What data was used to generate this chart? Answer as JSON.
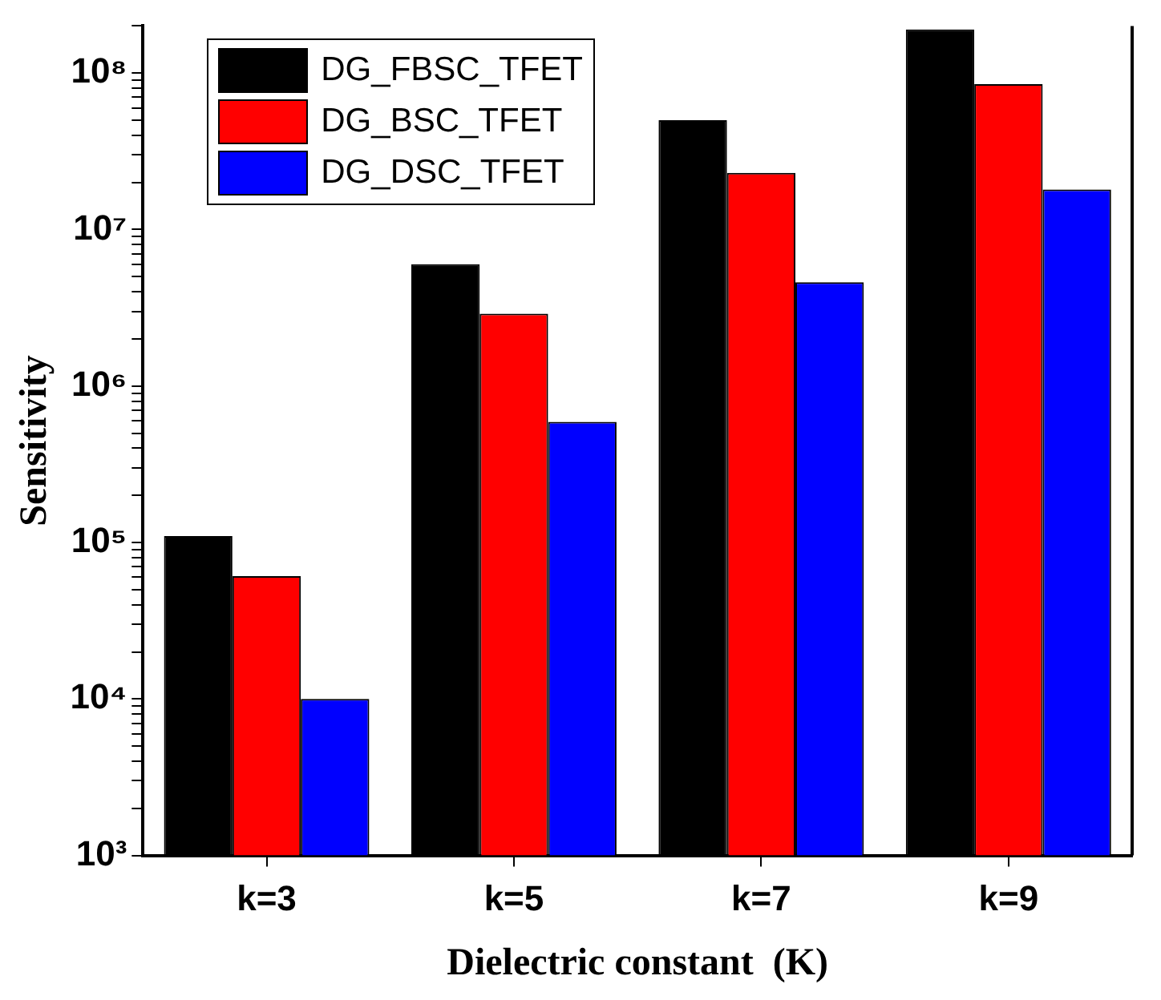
{
  "chart_data": {
    "type": "bar",
    "xlabel": "Dielectric constant  (K)",
    "ylabel": "Sensitivity",
    "categories": [
      "k=3",
      "k=5",
      "k=7",
      "k=9"
    ],
    "series": [
      {
        "name": "DG_FBSC_TFET",
        "color": "#000000",
        "values": [
          110000,
          6000000,
          50000000,
          190000000
        ]
      },
      {
        "name": "DG_BSC_TFET",
        "color": "#ff0000",
        "values": [
          61000,
          2900000,
          23000000,
          85000000
        ]
      },
      {
        "name": "DG_DSC_TFET",
        "color": "#0000ff",
        "values": [
          10000,
          590000,
          4600000,
          18000000
        ]
      }
    ],
    "log": "y",
    "ylim": [
      1000,
      200000000
    ],
    "yticks": [
      {
        "value": 1000,
        "label": "10³"
      },
      {
        "value": 2000,
        "label": null
      },
      {
        "value": 3000,
        "label": null
      },
      {
        "value": 4000,
        "label": null
      },
      {
        "value": 5000,
        "label": null
      },
      {
        "value": 6000,
        "label": null
      },
      {
        "value": 7000,
        "label": null
      },
      {
        "value": 8000,
        "label": null
      },
      {
        "value": 9000,
        "label": null
      },
      {
        "value": 10000,
        "label": "10⁴"
      },
      {
        "value": 20000,
        "label": null
      },
      {
        "value": 30000,
        "label": null
      },
      {
        "value": 40000,
        "label": null
      },
      {
        "value": 50000,
        "label": null
      },
      {
        "value": 60000,
        "label": null
      },
      {
        "value": 70000,
        "label": null
      },
      {
        "value": 80000,
        "label": null
      },
      {
        "value": 90000,
        "label": null
      },
      {
        "value": 100000,
        "label": "10⁵"
      },
      {
        "value": 200000,
        "label": null
      },
      {
        "value": 300000,
        "label": null
      },
      {
        "value": 400000,
        "label": null
      },
      {
        "value": 500000,
        "label": null
      },
      {
        "value": 600000,
        "label": null
      },
      {
        "value": 700000,
        "label": null
      },
      {
        "value": 800000,
        "label": null
      },
      {
        "value": 900000,
        "label": null
      },
      {
        "value": 1000000,
        "label": "10⁶"
      },
      {
        "value": 2000000,
        "label": null
      },
      {
        "value": 3000000,
        "label": null
      },
      {
        "value": 4000000,
        "label": null
      },
      {
        "value": 5000000,
        "label": null
      },
      {
        "value": 6000000,
        "label": null
      },
      {
        "value": 7000000,
        "label": null
      },
      {
        "value": 8000000,
        "label": null
      },
      {
        "value": 9000000,
        "label": null
      },
      {
        "value": 10000000,
        "label": "10⁷"
      },
      {
        "value": 20000000,
        "label": null
      },
      {
        "value": 30000000,
        "label": null
      },
      {
        "value": 40000000,
        "label": null
      },
      {
        "value": 50000000,
        "label": null
      },
      {
        "value": 60000000,
        "label": null
      },
      {
        "value": 70000000,
        "label": null
      },
      {
        "value": 80000000,
        "label": null
      },
      {
        "value": 90000000,
        "label": null
      },
      {
        "value": 100000000,
        "label": "10⁸"
      },
      {
        "value": 200000000,
        "label": null
      }
    ],
    "grid": false,
    "legend": "top left"
  }
}
